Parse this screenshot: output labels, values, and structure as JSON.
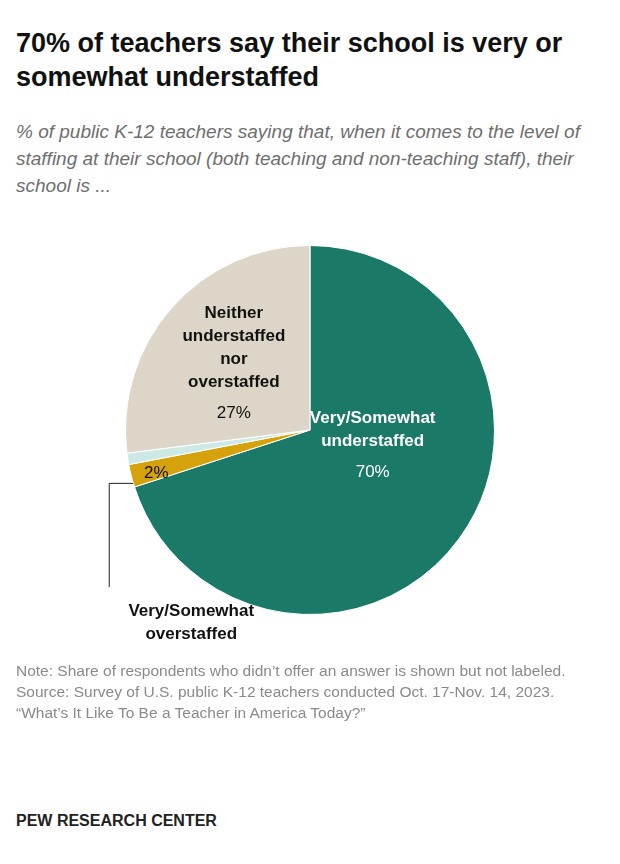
{
  "chart_data": {
    "type": "pie",
    "title": "70% of teachers say their school is very or somewhat understaffed",
    "subtitle": "% of public K-12 teachers saying that, when it comes to the level of staffing at their school (both teaching and non-teaching staff), their school is ...",
    "categories": [
      "Very/Somewhat understaffed",
      "Very/Somewhat overstaffed",
      null,
      "Neither understaffed nor overstaffed"
    ],
    "values": [
      70,
      2,
      1,
      27
    ],
    "value_labels": [
      "70%",
      "2%",
      null,
      "27%"
    ],
    "colors": [
      "#1b7a67",
      "#d6a20b",
      "#cde9e5",
      "#ddd6c8"
    ],
    "data_labels": true,
    "note": "Note: Share of respondents who didn’t offer an answer is shown but not labeled.",
    "source": "Source: Survey of U.S. public K-12 teachers conducted Oct. 17-Nov. 14, 2023.",
    "report": "“What’s It Like To Be a Teacher in America Today?”",
    "credit": "PEW RESEARCH CENTER"
  }
}
